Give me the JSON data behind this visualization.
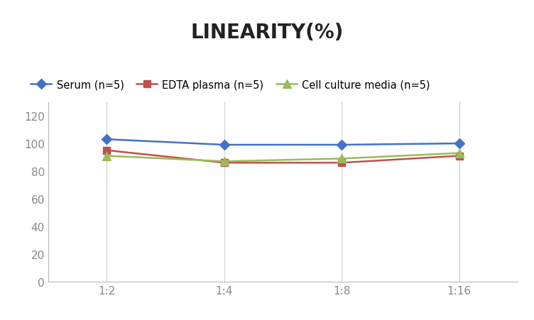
{
  "title": "LINEARITY(%)",
  "x_labels": [
    "1:2",
    "1:4",
    "1:8",
    "1:16"
  ],
  "x_positions": [
    0,
    1,
    2,
    3
  ],
  "series": [
    {
      "label": "Serum (n=5)",
      "values": [
        103,
        99,
        99,
        100
      ],
      "color": "#4472C4",
      "marker": "D",
      "markersize": 7,
      "linewidth": 1.8
    },
    {
      "label": "EDTA plasma (n=5)",
      "values": [
        95,
        86,
        86,
        91
      ],
      "color": "#C0504D",
      "marker": "s",
      "markersize": 7,
      "linewidth": 1.8
    },
    {
      "label": "Cell culture media (n=5)",
      "values": [
        91,
        87,
        89,
        93
      ],
      "color": "#9BBB59",
      "marker": "^",
      "markersize": 8,
      "linewidth": 1.8
    }
  ],
  "ylim": [
    0,
    130
  ],
  "yticks": [
    0,
    20,
    40,
    60,
    80,
    100,
    120
  ],
  "grid_color": "#D0D0D0",
  "background_color": "#FFFFFF",
  "title_fontsize": 20,
  "title_fontweight": "bold",
  "legend_fontsize": 10.5,
  "tick_fontsize": 11
}
